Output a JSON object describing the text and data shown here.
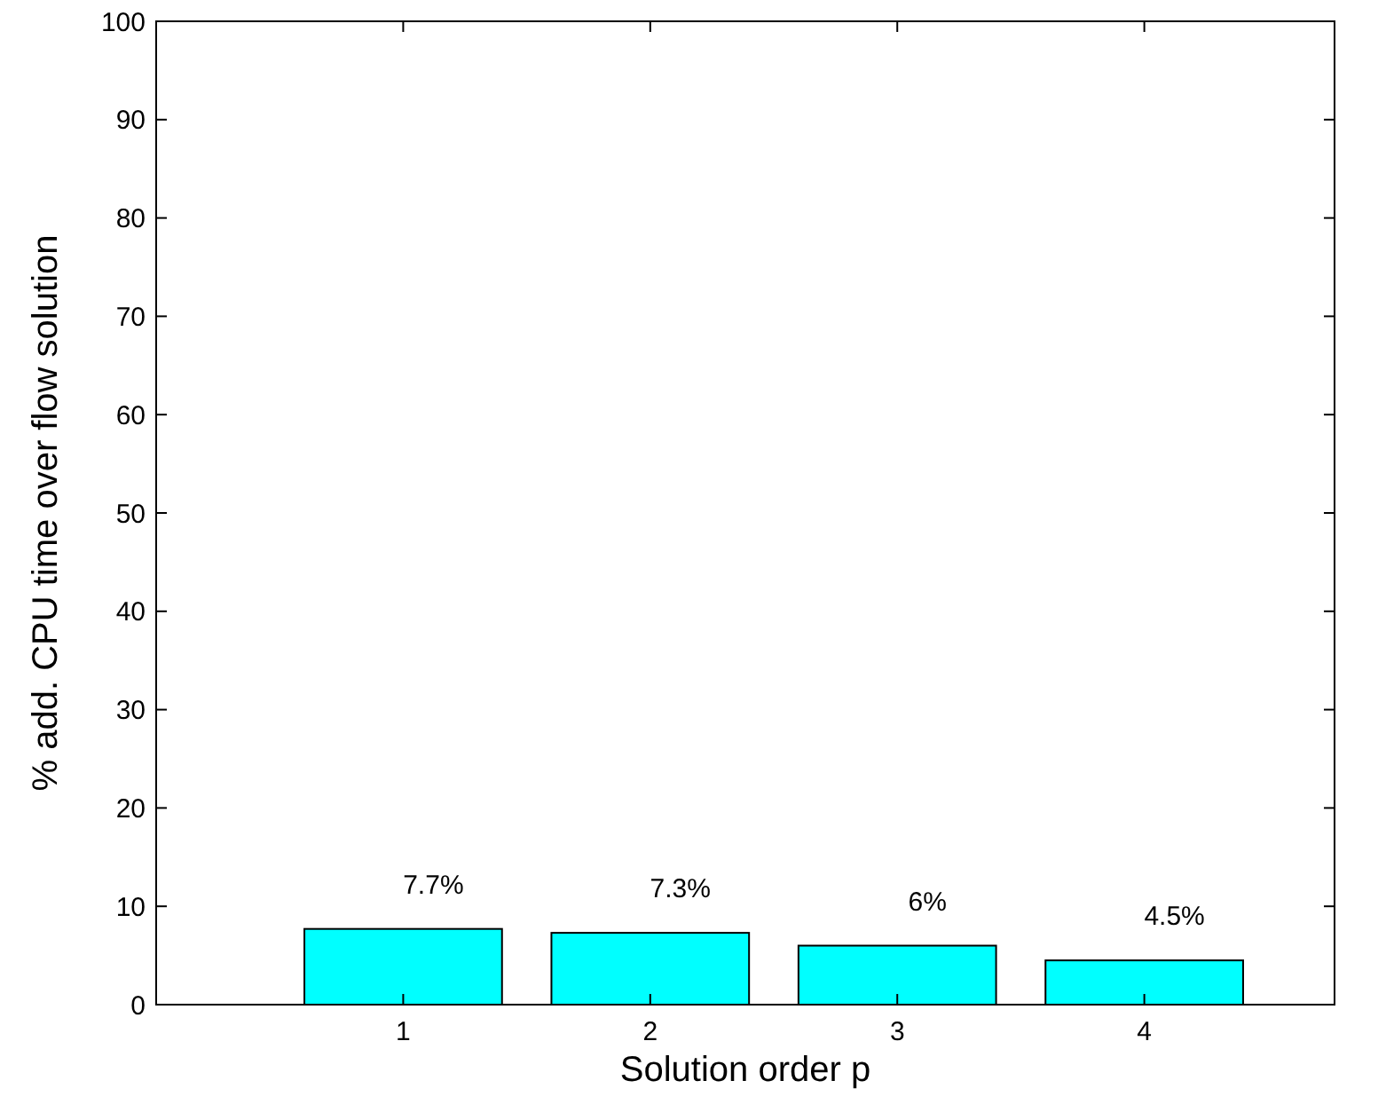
{
  "chart_data": {
    "type": "bar",
    "xlabel": "Solution order p",
    "ylabel": "% add. CPU time over flow solution",
    "categories": [
      "1",
      "2",
      "3",
      "4"
    ],
    "values": [
      7.7,
      7.3,
      6,
      4.5
    ],
    "value_labels": [
      "7.7%",
      "7.3%",
      "6%",
      "4.5%"
    ],
    "color": "#00ffff",
    "ylim": [
      0,
      100
    ],
    "yticks": [
      0,
      10,
      20,
      30,
      40,
      50,
      60,
      70,
      80,
      90,
      100
    ],
    "grid": false
  }
}
